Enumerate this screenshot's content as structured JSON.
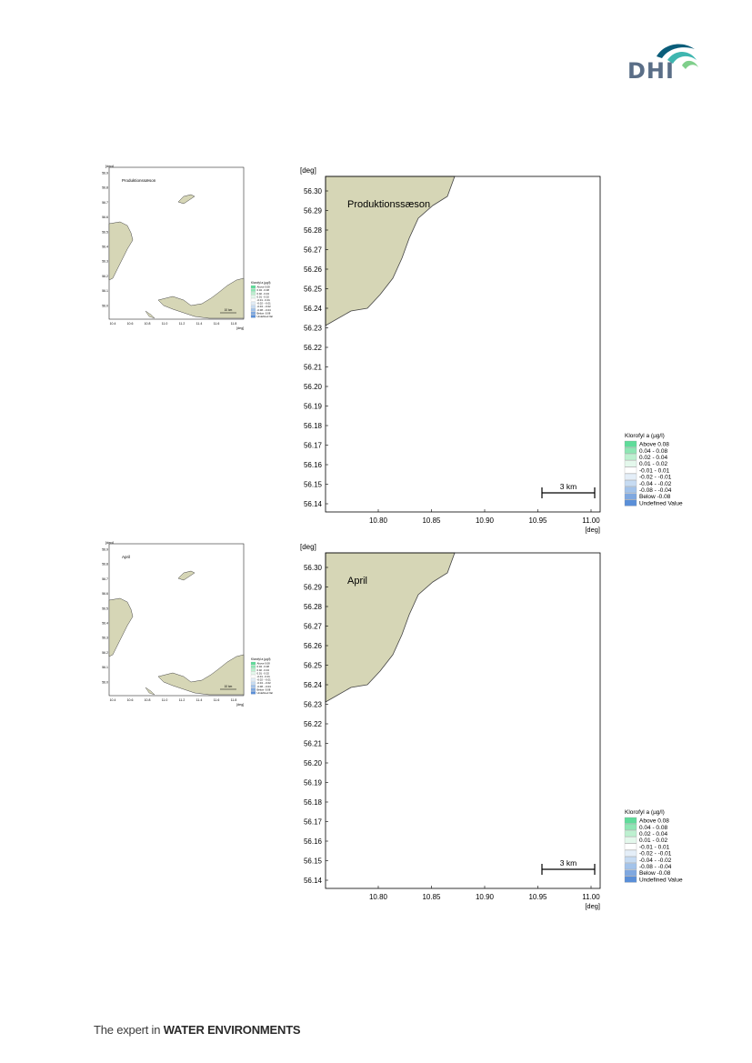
{
  "brand": {
    "logo_text": "DHI",
    "logo_colors": {
      "text": "#5a6e87",
      "wave_dark": "#0a5d7a",
      "wave_light": "#3fb6b0",
      "wave_green": "#7fcf8b"
    },
    "footer_prefix": "The expert in ",
    "footer_bold": "WATER ENVIRONMENTS"
  },
  "colors": {
    "land": "#d6d6b6",
    "land_stroke": "#444444",
    "legend_swatches": [
      "#5fdc9a",
      "#8ee6b4",
      "#bdf0d0",
      "#e4f8ec",
      "#ffffff",
      "#e4eef8",
      "#c6dbf2",
      "#a3c3ea",
      "#7fa8e0",
      "#5a8fd8",
      "#d6d6b6"
    ]
  },
  "maps": [
    {
      "title": "Produktionssæson",
      "y_unit": "[deg]",
      "x_unit": "[deg]",
      "y_ticks": [
        "56.30",
        "56.29",
        "56.28",
        "56.27",
        "56.26",
        "56.25",
        "56.24",
        "56.23",
        "56.22",
        "56.21",
        "56.20",
        "56.19",
        "56.18",
        "56.17",
        "56.16",
        "56.15",
        "56.14"
      ],
      "x_ticks": [
        "10.80",
        "10.85",
        "10.90",
        "10.95",
        "11.00"
      ],
      "scale_label": "3 km",
      "legend": {
        "title": "Klorofyl a (µg/l)",
        "entries": [
          "Above  0.08",
          " 0.04 -  0.08",
          " 0.02 -  0.04",
          " 0.01 -  0.02",
          "-0.01 -  0.01",
          "-0.02 - -0.01",
          "-0.04 - -0.02",
          "-0.08 - -0.04",
          "Below -0.08",
          "Undefined Value"
        ]
      },
      "thumbnail": {
        "title": "Produktionssæson",
        "y_unit": "[deg]",
        "x_unit": "[deg]",
        "y_ticks": [
          "56.9",
          "56.8",
          "56.7",
          "56.6",
          "56.5",
          "56.4",
          "56.3",
          "56.2",
          "56.1",
          "56.0"
        ],
        "x_ticks": [
          "10.4",
          "10.6",
          "10.8",
          "11.0",
          "11.2",
          "11.4",
          "11.6",
          "11.8"
        ],
        "scale_label": "10 km",
        "legend_title": "Klorofyl a (µg/l)"
      }
    },
    {
      "title": "April",
      "y_unit": "[deg]",
      "x_unit": "[deg]",
      "y_ticks": [
        "56.30",
        "56.29",
        "56.28",
        "56.27",
        "56.26",
        "56.25",
        "56.24",
        "56.23",
        "56.22",
        "56.21",
        "56.20",
        "56.19",
        "56.18",
        "56.17",
        "56.16",
        "56.15",
        "56.14"
      ],
      "x_ticks": [
        "10.80",
        "10.85",
        "10.90",
        "10.95",
        "11.00"
      ],
      "scale_label": "3 km",
      "legend": {
        "title": "Klorofyl a (µg/l)",
        "entries": [
          "Above  0.08",
          " 0.04 -  0.08",
          " 0.02 -  0.04",
          " 0.01 -  0.02",
          "-0.01 -  0.01",
          "-0.02 - -0.01",
          "-0.04 - -0.02",
          "-0.08 - -0.04",
          "Below -0.08",
          "Undefined Value"
        ]
      },
      "thumbnail": {
        "title": "April",
        "y_unit": "[deg]",
        "x_unit": "[deg]",
        "y_ticks": [
          "56.9",
          "56.8",
          "56.7",
          "56.6",
          "56.5",
          "56.4",
          "56.3",
          "56.2",
          "56.1",
          "56.0"
        ],
        "x_ticks": [
          "10.4",
          "10.6",
          "10.8",
          "11.0",
          "11.2",
          "11.4",
          "11.6",
          "11.8"
        ],
        "scale_label": "10 km",
        "legend_title": "Klorofyl a (µg/l)"
      }
    }
  ]
}
